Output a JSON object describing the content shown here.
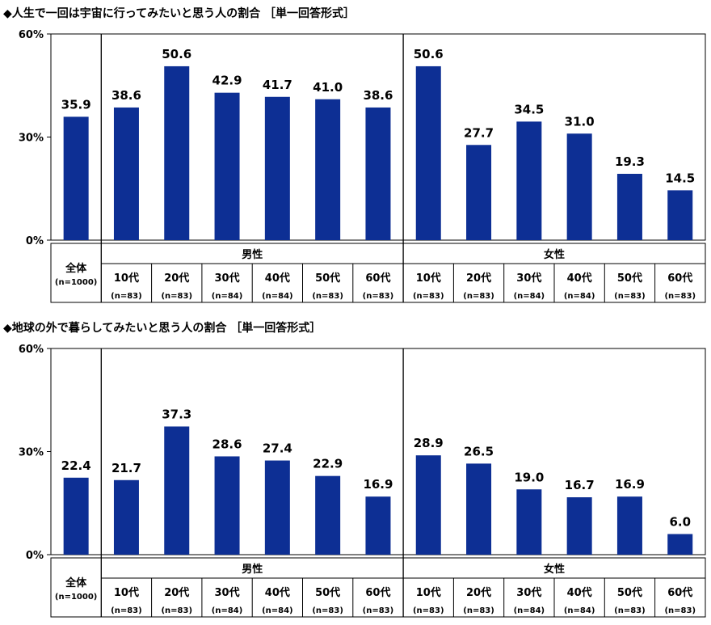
{
  "chart_data": [
    {
      "type": "bar",
      "title": "◆人生で一回は宇宙に行ってみたいと思う人の割合 ［単一回答形式］",
      "y_ticks": [
        "60%",
        "30%",
        "0%"
      ],
      "ylim": [
        0,
        60
      ],
      "grid": false,
      "overall": {
        "label": "全体",
        "n": "(n=1000)",
        "value": 35.9,
        "value_label": "35.9"
      },
      "groups": [
        {
          "label": "男性",
          "categories": [
            {
              "label": "10代",
              "n": "(n=83)",
              "value": 38.6,
              "value_label": "38.6"
            },
            {
              "label": "20代",
              "n": "(n=83)",
              "value": 50.6,
              "value_label": "50.6"
            },
            {
              "label": "30代",
              "n": "(n=84)",
              "value": 42.9,
              "value_label": "42.9"
            },
            {
              "label": "40代",
              "n": "(n=84)",
              "value": 41.7,
              "value_label": "41.7"
            },
            {
              "label": "50代",
              "n": "(n=83)",
              "value": 41.0,
              "value_label": "41.0"
            },
            {
              "label": "60代",
              "n": "(n=83)",
              "value": 38.6,
              "value_label": "38.6"
            }
          ]
        },
        {
          "label": "女性",
          "categories": [
            {
              "label": "10代",
              "n": "(n=83)",
              "value": 50.6,
              "value_label": "50.6"
            },
            {
              "label": "20代",
              "n": "(n=83)",
              "value": 27.7,
              "value_label": "27.7"
            },
            {
              "label": "30代",
              "n": "(n=84)",
              "value": 34.5,
              "value_label": "34.5"
            },
            {
              "label": "40代",
              "n": "(n=84)",
              "value": 31.0,
              "value_label": "31.0"
            },
            {
              "label": "50代",
              "n": "(n=83)",
              "value": 19.3,
              "value_label": "19.3"
            },
            {
              "label": "60代",
              "n": "(n=83)",
              "value": 14.5,
              "value_label": "14.5"
            }
          ]
        }
      ]
    },
    {
      "type": "bar",
      "title": "◆地球の外で暮らしてみたいと思う人の割合 ［単一回答形式］",
      "y_ticks": [
        "60%",
        "30%",
        "0%"
      ],
      "ylim": [
        0,
        60
      ],
      "grid": false,
      "overall": {
        "label": "全体",
        "n": "(n=1000)",
        "value": 22.4,
        "value_label": "22.4"
      },
      "groups": [
        {
          "label": "男性",
          "categories": [
            {
              "label": "10代",
              "n": "(n=83)",
              "value": 21.7,
              "value_label": "21.7"
            },
            {
              "label": "20代",
              "n": "(n=83)",
              "value": 37.3,
              "value_label": "37.3"
            },
            {
              "label": "30代",
              "n": "(n=84)",
              "value": 28.6,
              "value_label": "28.6"
            },
            {
              "label": "40代",
              "n": "(n=84)",
              "value": 27.4,
              "value_label": "27.4"
            },
            {
              "label": "50代",
              "n": "(n=83)",
              "value": 22.9,
              "value_label": "22.9"
            },
            {
              "label": "60代",
              "n": "(n=83)",
              "value": 16.9,
              "value_label": "16.9"
            }
          ]
        },
        {
          "label": "女性",
          "categories": [
            {
              "label": "10代",
              "n": "(n=83)",
              "value": 28.9,
              "value_label": "28.9"
            },
            {
              "label": "20代",
              "n": "(n=83)",
              "value": 26.5,
              "value_label": "26.5"
            },
            {
              "label": "30代",
              "n": "(n=84)",
              "value": 19.0,
              "value_label": "19.0"
            },
            {
              "label": "40代",
              "n": "(n=84)",
              "value": 16.7,
              "value_label": "16.7"
            },
            {
              "label": "50代",
              "n": "(n=83)",
              "value": 16.9,
              "value_label": "16.9"
            },
            {
              "label": "60代",
              "n": "(n=83)",
              "value": 6.0,
              "value_label": "6.0"
            }
          ]
        }
      ]
    }
  ],
  "colors": {
    "bar": "#0d2f94",
    "line": "#000000"
  }
}
